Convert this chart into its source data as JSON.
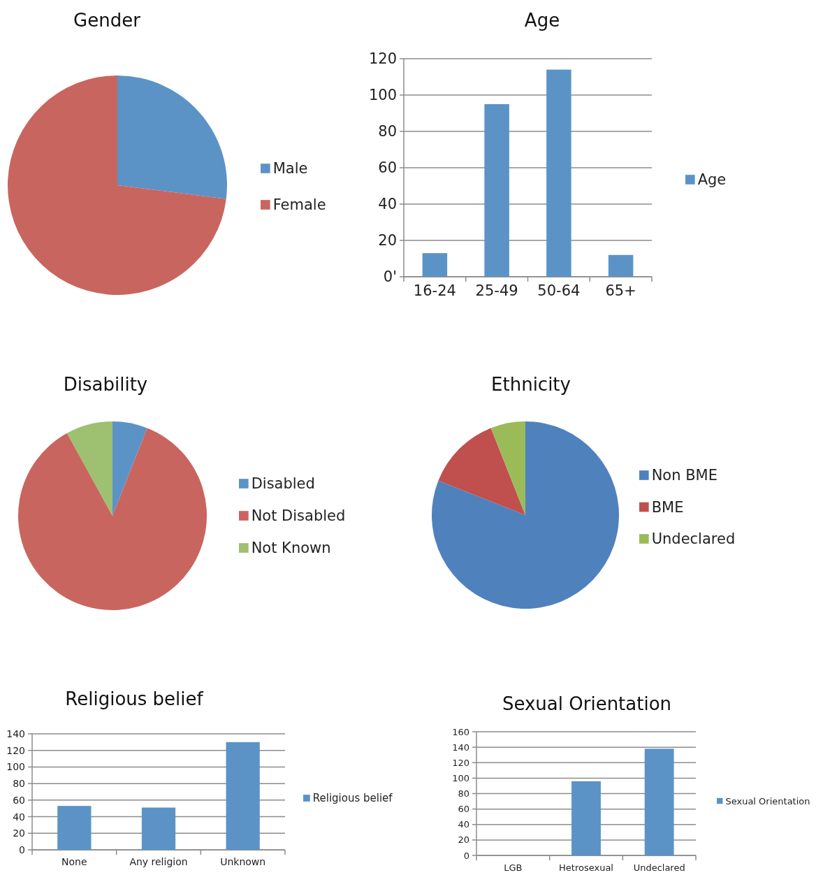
{
  "chart_data": [
    {
      "type": "pie",
      "title": "Gender",
      "categories": [
        "Male",
        "Female"
      ],
      "values": [
        27,
        73
      ],
      "colors": [
        "#5b93c7",
        "#c9655f"
      ],
      "legend": "right"
    },
    {
      "type": "bar",
      "title": "Age",
      "categories": [
        "16-24",
        "25-49",
        "50-64",
        "65+"
      ],
      "series": [
        {
          "name": "Age",
          "color": "#5b93c7",
          "values": [
            13,
            95,
            114,
            12
          ]
        }
      ],
      "ylim": [
        0,
        120
      ],
      "yticks": [
        {
          "value": 0,
          "label": "0'"
        },
        20,
        40,
        60,
        80,
        100,
        120
      ],
      "grid": "y",
      "legend": "right"
    },
    {
      "type": "pie",
      "title": "Disability",
      "categories": [
        "Disabled",
        "Not Disabled",
        "Not Known"
      ],
      "values": [
        6,
        86,
        8
      ],
      "colors": [
        "#5b93c7",
        "#c9655f",
        "#9dc071"
      ],
      "legend": "right"
    },
    {
      "type": "pie",
      "title": "Ethnicity",
      "categories": [
        "Non BME",
        "BME",
        "Undeclared"
      ],
      "values": [
        81,
        13,
        6
      ],
      "colors": [
        "#4f81bd",
        "#c0504d",
        "#9bbb59"
      ],
      "legend": "right"
    },
    {
      "type": "bar",
      "title": "Religious belief",
      "categories": [
        "None",
        "Any religion",
        "Unknown"
      ],
      "series": [
        {
          "name": "Religious belief",
          "color": "#5b93c7",
          "values": [
            53,
            51,
            130
          ]
        }
      ],
      "ylim": [
        0,
        140
      ],
      "yticks": [
        0,
        20,
        40,
        60,
        80,
        100,
        120,
        140
      ],
      "grid": "y",
      "legend": "right"
    },
    {
      "type": "bar",
      "title": "Sexual Orientation",
      "categories": [
        "LGB",
        "Hetrosexual",
        "Undeclared"
      ],
      "series": [
        {
          "name": "Sexual Orientation",
          "color": "#5b93c7",
          "values": [
            0,
            96,
            138
          ]
        }
      ],
      "ylim": [
        0,
        160
      ],
      "yticks": [
        0,
        20,
        40,
        60,
        80,
        100,
        120,
        140,
        160
      ],
      "grid": "y",
      "legend": "right"
    }
  ]
}
